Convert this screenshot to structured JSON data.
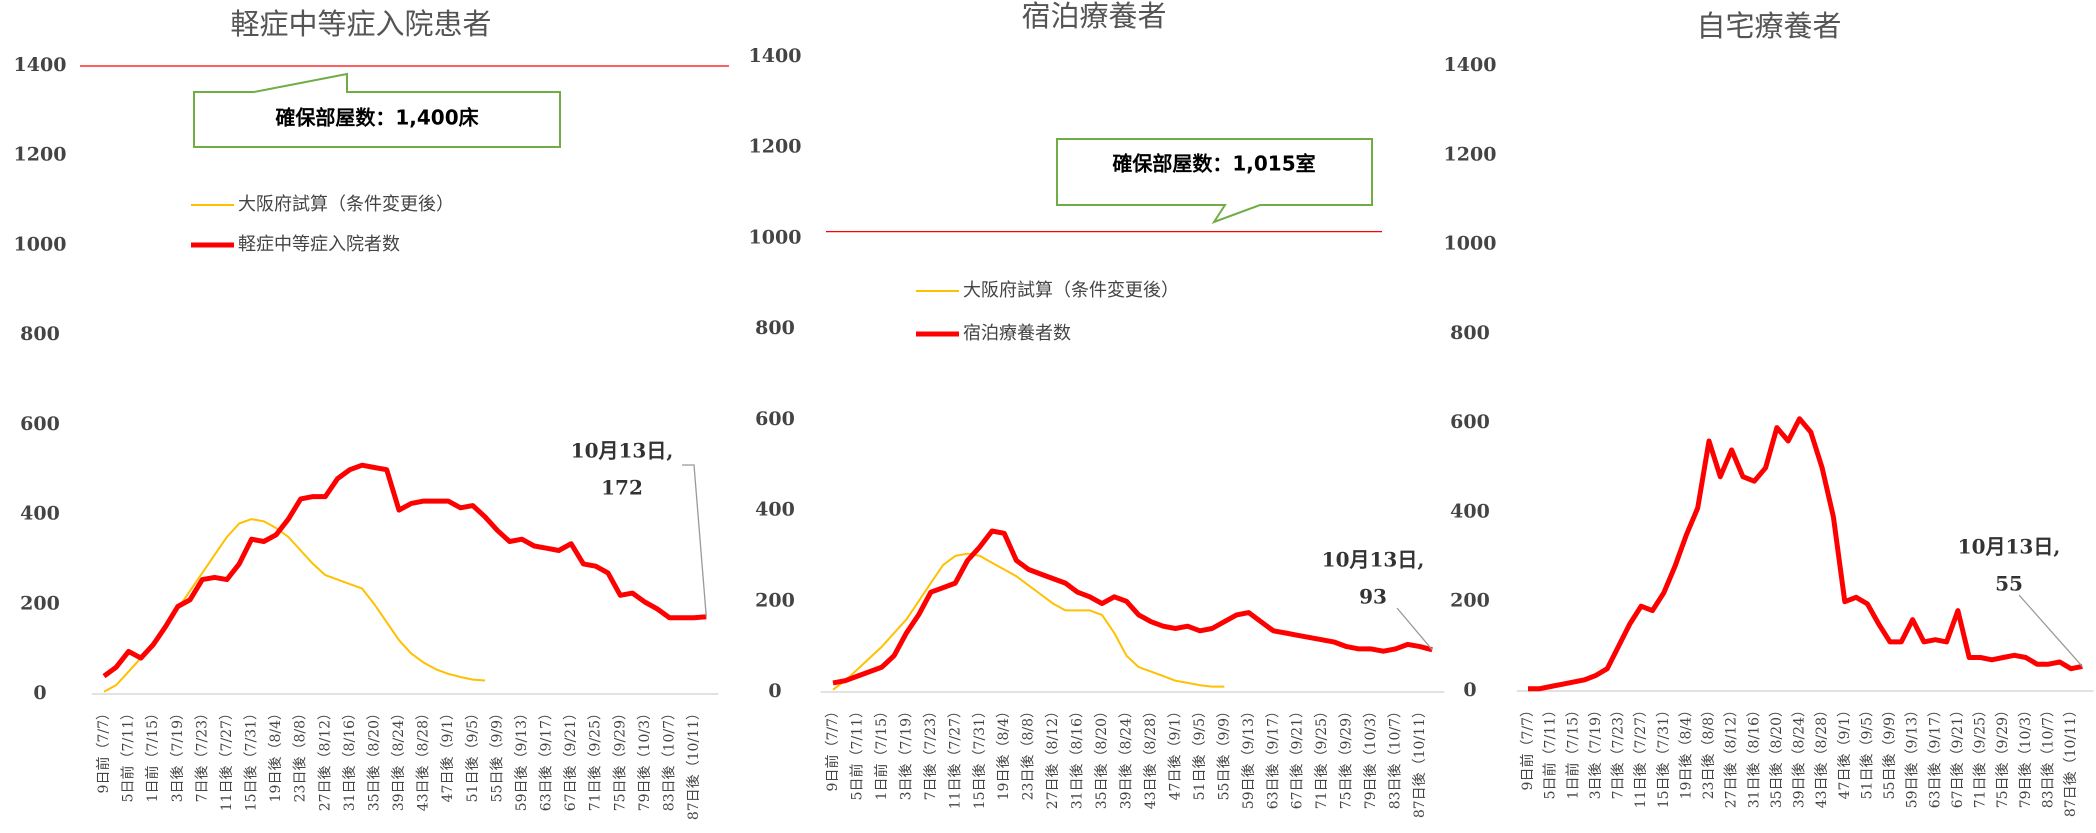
{
  "chart_data": [
    {
      "type": "line",
      "title": "軽症中等症入院患者",
      "categories": [
        "9日前（7/7）",
        null,
        "5日前（7/11）",
        null,
        "1日前（7/15）",
        null,
        "3日後（7/19）",
        null,
        "7日後（7/23）",
        null,
        "11日後（7/27）",
        null,
        "15日後（7/31）",
        null,
        "19日後（8/4）",
        null,
        "23日後（8/8）",
        null,
        "27日後（8/12）",
        null,
        "31日後（8/16）",
        null,
        "35日後（8/20）",
        null,
        "39日後（8/24）",
        null,
        "43日後（8/28）",
        null,
        "47日後（9/1）",
        null,
        "51日後（9/5）",
        null,
        "55日後（9/9）",
        null,
        "59日後（9/13）",
        null,
        "63日後（9/17）",
        null,
        "67日後（9/21）",
        null,
        "71日後（9/25）",
        null,
        "75日後（9/29）",
        null,
        "79日後（10/3）",
        null,
        "83日後（10/7）",
        null,
        "87日後（10/11）",
        null
      ],
      "series": [
        {
          "name": "大阪府試算（条件変更後）",
          "color": "#ffc000",
          "width": 2,
          "values": [
            5,
            20,
            50,
            80,
            110,
            150,
            190,
            230,
            270,
            310,
            350,
            380,
            390,
            385,
            370,
            350,
            320,
            290,
            265,
            255,
            245,
            235,
            200,
            160,
            120,
            90,
            70,
            55,
            45,
            38,
            32,
            30,
            null,
            null,
            null,
            null,
            null,
            null,
            null,
            null,
            null,
            null,
            null,
            null,
            null,
            null,
            null,
            null,
            null,
            null
          ]
        },
        {
          "name": "軽症中等症入院者数",
          "color": "#ff0000",
          "width": 5,
          "values": [
            40,
            60,
            95,
            80,
            110,
            150,
            195,
            210,
            255,
            260,
            255,
            290,
            345,
            340,
            355,
            390,
            435,
            440,
            440,
            480,
            500,
            510,
            505,
            500,
            410,
            425,
            430,
            430,
            430,
            415,
            420,
            395,
            365,
            340,
            345,
            330,
            325,
            320,
            335,
            290,
            285,
            270,
            220,
            225,
            205,
            190,
            170,
            170,
            170,
            172
          ]
        }
      ],
      "ylim": [
        0,
        1400
      ],
      "yticks": [
        0,
        200,
        400,
        600,
        800,
        1000,
        1200,
        1400
      ],
      "capacity": {
        "value": 1400,
        "label": "確保部屋数：1,400床"
      },
      "annotation": "10月13日,"
    },
    {
      "type": "line",
      "title": "宿泊療養者",
      "categories": [
        "9日前（7/7）",
        null,
        "5日前（7/11）",
        null,
        "1日前（7/15）",
        null,
        "3日後（7/19）",
        null,
        "7日後（7/23）",
        null,
        "11日後（7/27）",
        null,
        "15日後（7/31）",
        null,
        "19日後（8/4）",
        null,
        "23日後（8/8）",
        null,
        "27日後（8/12）",
        null,
        "31日後（8/16）",
        null,
        "35日後（8/20）",
        null,
        "39日後（8/24）",
        null,
        "43日後（8/28）",
        null,
        "47日後（9/1）",
        null,
        "51日後（9/5）",
        null,
        "55日後（9/9）",
        null,
        "59日後（9/13）",
        null,
        "63日後（9/17）",
        null,
        "67日後（9/21）",
        null,
        "71日後（9/25）",
        null,
        "75日後（9/29）",
        null,
        "79日後（10/3）",
        null,
        "83日後（10/7）",
        null,
        "87日後（10/11）",
        null
      ],
      "series": [
        {
          "name": "大阪府試算（条件変更後）",
          "color": "#ffc000",
          "width": 2,
          "values": [
            5,
            25,
            50,
            75,
            100,
            130,
            160,
            200,
            240,
            280,
            300,
            305,
            300,
            285,
            270,
            255,
            235,
            215,
            195,
            180,
            180,
            180,
            170,
            130,
            80,
            55,
            45,
            35,
            25,
            20,
            15,
            12,
            12,
            null,
            null,
            null,
            null,
            null,
            null,
            null,
            null,
            null,
            null,
            null,
            null,
            null,
            null,
            null,
            null,
            null
          ]
        },
        {
          "name": "宿泊療養者数",
          "color": "#ff0000",
          "width": 5,
          "values": [
            20,
            25,
            35,
            45,
            55,
            80,
            130,
            170,
            220,
            230,
            240,
            290,
            320,
            355,
            350,
            290,
            270,
            260,
            250,
            240,
            220,
            210,
            195,
            210,
            200,
            170,
            155,
            145,
            140,
            145,
            135,
            140,
            155,
            170,
            175,
            155,
            135,
            130,
            125,
            120,
            115,
            110,
            100,
            95,
            95,
            90,
            95,
            105,
            100,
            93
          ]
        }
      ],
      "ylim": [
        0,
        1400
      ],
      "yticks": [
        0,
        200,
        400,
        600,
        800,
        1000,
        1200,
        1400
      ],
      "capacity": {
        "value": 1015,
        "label": "確保部屋数：1,015室"
      },
      "annotation": "10月13日,"
    },
    {
      "type": "line",
      "title": "自宅療養者",
      "categories": [
        "9日前（7/7）",
        null,
        "5日前（7/11）",
        null,
        "1日前（7/15）",
        null,
        "3日後（7/19）",
        null,
        "7日後（7/23）",
        null,
        "11日後（7/27）",
        null,
        "15日後（7/31）",
        null,
        "19日後（8/4）",
        null,
        "23日後（8/8）",
        null,
        "27日後（8/12）",
        null,
        "31日後（8/16）",
        null,
        "35日後（8/20）",
        null,
        "39日後（8/24）",
        null,
        "43日後（8/28）",
        null,
        "47日後（9/1）",
        null,
        "51日後（9/5）",
        null,
        "55日後（9/9）",
        null,
        "59日後（9/13）",
        null,
        "63日後（9/17）",
        null,
        "67日後（9/21）",
        null,
        "71日後（9/25）",
        null,
        "75日後（9/29）",
        null,
        "79日後（10/3）",
        null,
        "83日後（10/7）",
        null,
        "87日後（10/11）",
        null
      ],
      "series": [
        {
          "color": "#ff0000",
          "width": 5,
          "values": [
            5,
            5,
            10,
            15,
            20,
            25,
            35,
            50,
            100,
            150,
            190,
            180,
            220,
            280,
            350,
            410,
            560,
            480,
            540,
            480,
            470,
            500,
            590,
            560,
            610,
            580,
            500,
            390,
            200,
            210,
            195,
            150,
            110,
            110,
            160,
            110,
            115,
            110,
            180,
            75,
            75,
            70,
            75,
            80,
            75,
            60,
            60,
            65,
            50,
            55
          ]
        }
      ],
      "ylim": [
        0,
        1400
      ],
      "yticks": [
        0,
        200,
        400,
        600,
        800,
        1000,
        1200,
        1400
      ],
      "annotation": "10月13日,"
    }
  ]
}
